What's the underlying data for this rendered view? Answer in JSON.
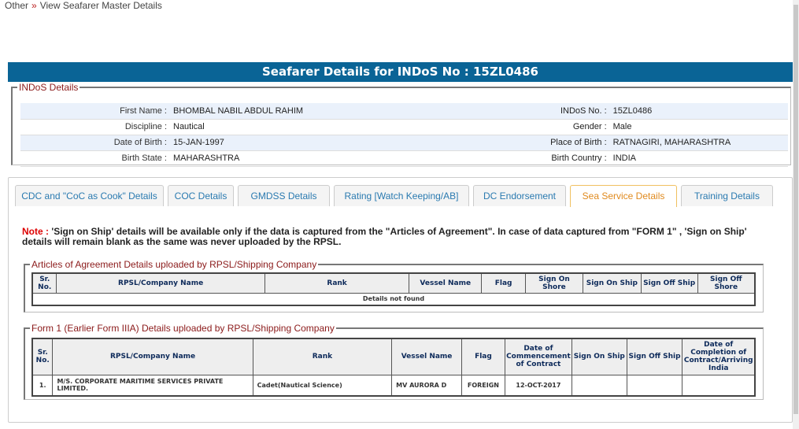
{
  "breadcrumb": {
    "items": [
      "Other",
      "View Seafarer Master Details"
    ],
    "separator": "»"
  },
  "header": {
    "title": "Seafarer Details for INDoS No : 15ZL0486"
  },
  "indos": {
    "legend": "INDoS Details",
    "rows": [
      {
        "l1": "First Name :",
        "v1": "BHOMBAL NABIL ABDUL RAHIM",
        "l2": "INDoS No. :",
        "v2": "15ZL0486"
      },
      {
        "l1": "Discipline :",
        "v1": "Nautical",
        "l2": "Gender :",
        "v2": "Male"
      },
      {
        "l1": "Date of Birth :",
        "v1": "15-JAN-1997",
        "l2": "Place of Birth :",
        "v2": "RATNAGIRI, MAHARASHTRA"
      },
      {
        "l1": "Birth State :",
        "v1": "MAHARASHTRA",
        "l2": "Birth Country :",
        "v2": "INDIA"
      }
    ]
  },
  "tabs": [
    "CDC and \"CoC as Cook\" Details",
    "COC Details",
    "GMDSS Details",
    "Rating [Watch Keeping/AB]",
    "DC Endorsement",
    "Sea Service Details",
    "Training Details"
  ],
  "active_tab": "Sea Service Details",
  "note": {
    "label": "Note :",
    "text": " 'Sign on Ship' details will be available only if the data is captured from the \"Articles of Agreement\". In case of data captured from \"FORM 1\" , 'Sign on Ship' details will remain blank as the same was never uploaded by the RPSL."
  },
  "aoa": {
    "legend": "Articles of Agreement Details uploaded by RPSL/Shipping Company",
    "headers": [
      "Sr. No.",
      "RPSL/Company Name",
      "Rank",
      "Vessel Name",
      "Flag",
      "Sign On Shore",
      "Sign On Ship",
      "Sign Off Ship",
      "Sign Off Shore"
    ],
    "empty": "Details not found"
  },
  "form1": {
    "legend": "Form 1 (Earlier Form IIIA) Details uploaded by RPSL/Shipping Company",
    "headers": [
      "Sr. No.",
      "RPSL/Company Name",
      "Rank",
      "Vessel Name",
      "Flag",
      "Date of Commencement of Contract",
      "Sign On Ship",
      "Sign Off Ship",
      "Date of Completion of Contract/Arriving India"
    ],
    "rows": [
      [
        "1.",
        "M/S. CORPORATE MARITIME SERVICES PRIVATE LIMITED.",
        "Cadet(Nautical Science)",
        "MV AURORA D",
        "FOREIGN",
        "12-OCT-2017",
        "",
        "",
        ""
      ]
    ]
  },
  "colors": {
    "header": "#0a6496",
    "legend": "#8b1a1a",
    "active_tab": "#e08a1e",
    "tab_text": "#2a7ab0",
    "error": "#e00000"
  }
}
